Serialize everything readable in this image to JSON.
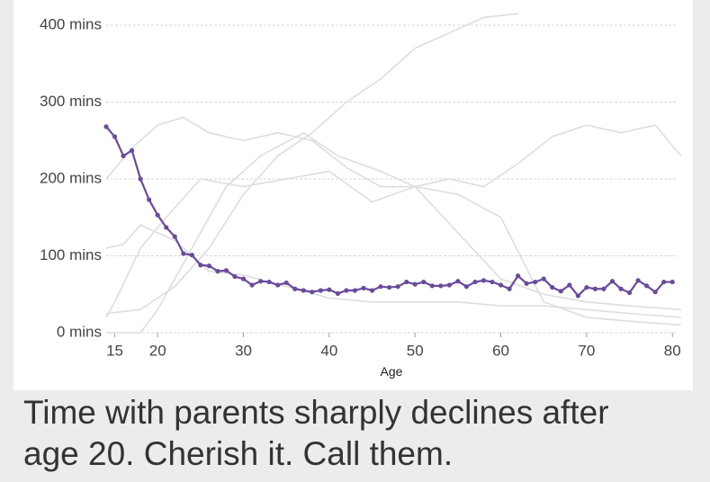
{
  "chart_data": {
    "type": "line",
    "x_label": "Age",
    "xlim": [
      14,
      80.5
    ],
    "xticks": [
      15,
      20,
      30,
      40,
      50,
      60,
      70,
      80
    ],
    "ylim": [
      0,
      400
    ],
    "yticks": [
      {
        "value": 0,
        "label": "0 mins"
      },
      {
        "value": 100,
        "label": "100 mins"
      },
      {
        "value": 200,
        "label": "200 mins"
      },
      {
        "value": 300,
        "label": "300 mins"
      },
      {
        "value": 400,
        "label": "400 mins"
      }
    ],
    "grid": true,
    "background_series": [
      {
        "color": "#dddddd",
        "x": [
          14,
          18,
          22,
          26,
          30,
          34,
          38,
          42,
          46,
          50,
          54,
          58,
          62
        ],
        "values": [
          25,
          30,
          60,
          110,
          180,
          230,
          260,
          300,
          330,
          370,
          390,
          410,
          415
        ]
      },
      {
        "color": "#dddddd",
        "x": [
          14,
          17,
          20,
          23,
          26,
          30,
          34,
          38,
          42,
          46,
          50,
          54,
          58,
          62,
          66,
          70,
          74,
          78,
          81
        ],
        "values": [
          200,
          240,
          270,
          280,
          260,
          250,
          260,
          250,
          215,
          190,
          190,
          200,
          190,
          220,
          255,
          270,
          260,
          270,
          230
        ]
      },
      {
        "color": "#dddddd",
        "x": [
          14,
          16,
          18,
          22,
          26,
          30,
          35,
          40,
          45,
          50,
          55,
          60,
          65,
          70,
          75,
          81
        ],
        "values": [
          110,
          115,
          140,
          120,
          80,
          75,
          60,
          45,
          40,
          40,
          40,
          35,
          35,
          30,
          25,
          20
        ]
      },
      {
        "color": "#dddddd",
        "x": [
          14,
          18,
          20,
          24,
          28,
          32,
          37,
          41,
          46,
          50,
          55,
          60,
          65,
          70,
          75,
          81
        ],
        "values": [
          0,
          0,
          30,
          110,
          190,
          230,
          260,
          230,
          210,
          190,
          130,
          70,
          50,
          40,
          35,
          30
        ]
      },
      {
        "color": "#dddddd",
        "x": [
          14,
          15,
          18,
          21,
          25,
          30,
          35,
          40,
          45,
          50,
          55,
          60,
          65,
          70,
          75,
          81
        ],
        "values": [
          20,
          40,
          110,
          150,
          200,
          190,
          200,
          210,
          170,
          190,
          180,
          150,
          40,
          20,
          15,
          10
        ]
      }
    ],
    "series": [
      {
        "color": "#6a4a9c",
        "x": [
          14,
          15,
          16,
          17,
          18,
          19,
          20,
          21,
          22,
          23,
          24,
          25,
          26,
          27,
          28,
          29,
          30,
          31,
          32,
          33,
          34,
          35,
          36,
          37,
          38,
          39,
          40,
          41,
          42,
          43,
          44,
          45,
          46,
          47,
          48,
          49,
          50,
          51,
          52,
          53,
          54,
          55,
          56,
          57,
          58,
          59,
          60,
          61,
          62,
          63,
          64,
          65,
          66,
          67,
          68,
          69,
          70,
          71,
          72,
          73,
          74,
          75,
          76,
          77,
          78,
          79,
          80
        ],
        "values": [
          268,
          255,
          230,
          237,
          200,
          173,
          153,
          137,
          125,
          103,
          101,
          88,
          87,
          80,
          81,
          73,
          70,
          62,
          67,
          66,
          62,
          65,
          57,
          55,
          53,
          55,
          56,
          51,
          55,
          55,
          58,
          55,
          60,
          59,
          60,
          66,
          63,
          66,
          61,
          61,
          62,
          67,
          60,
          66,
          68,
          66,
          62,
          57,
          74,
          64,
          66,
          70,
          59,
          54,
          62,
          48,
          59,
          57,
          57,
          67,
          57,
          52,
          68,
          61,
          53,
          66,
          66
        ]
      }
    ]
  },
  "caption": [
    "Time with parents sharply declines after",
    "age 20. Cherish it. Call them."
  ]
}
